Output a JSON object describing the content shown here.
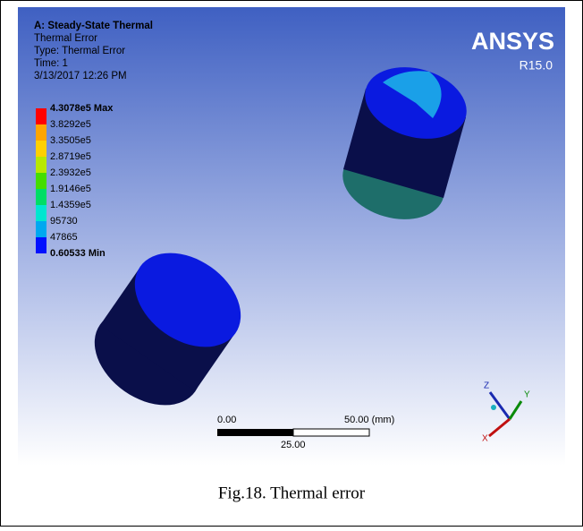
{
  "header": {
    "title": "A: Steady-State Thermal",
    "lines": [
      "Thermal Error",
      "Type: Thermal Error",
      "Time: 1",
      "3/13/2017 12:26 PM"
    ]
  },
  "legend": {
    "max": "4.3078e5 Max",
    "entries": [
      "3.8292e5",
      "3.3505e5",
      "2.8719e5",
      "2.3932e5",
      "1.9146e5",
      "1.4359e5",
      "95730",
      "47865"
    ],
    "min": "0.60533 Min"
  },
  "logo": {
    "name": "ANSYS",
    "version": "R15.0"
  },
  "scale_bar": {
    "start": "0.00",
    "end": "50.00 (mm)",
    "middle": "25.00"
  },
  "triad": {
    "z": "Z",
    "y": "Y",
    "x": "X"
  },
  "caption": "Fig.18. Thermal error"
}
